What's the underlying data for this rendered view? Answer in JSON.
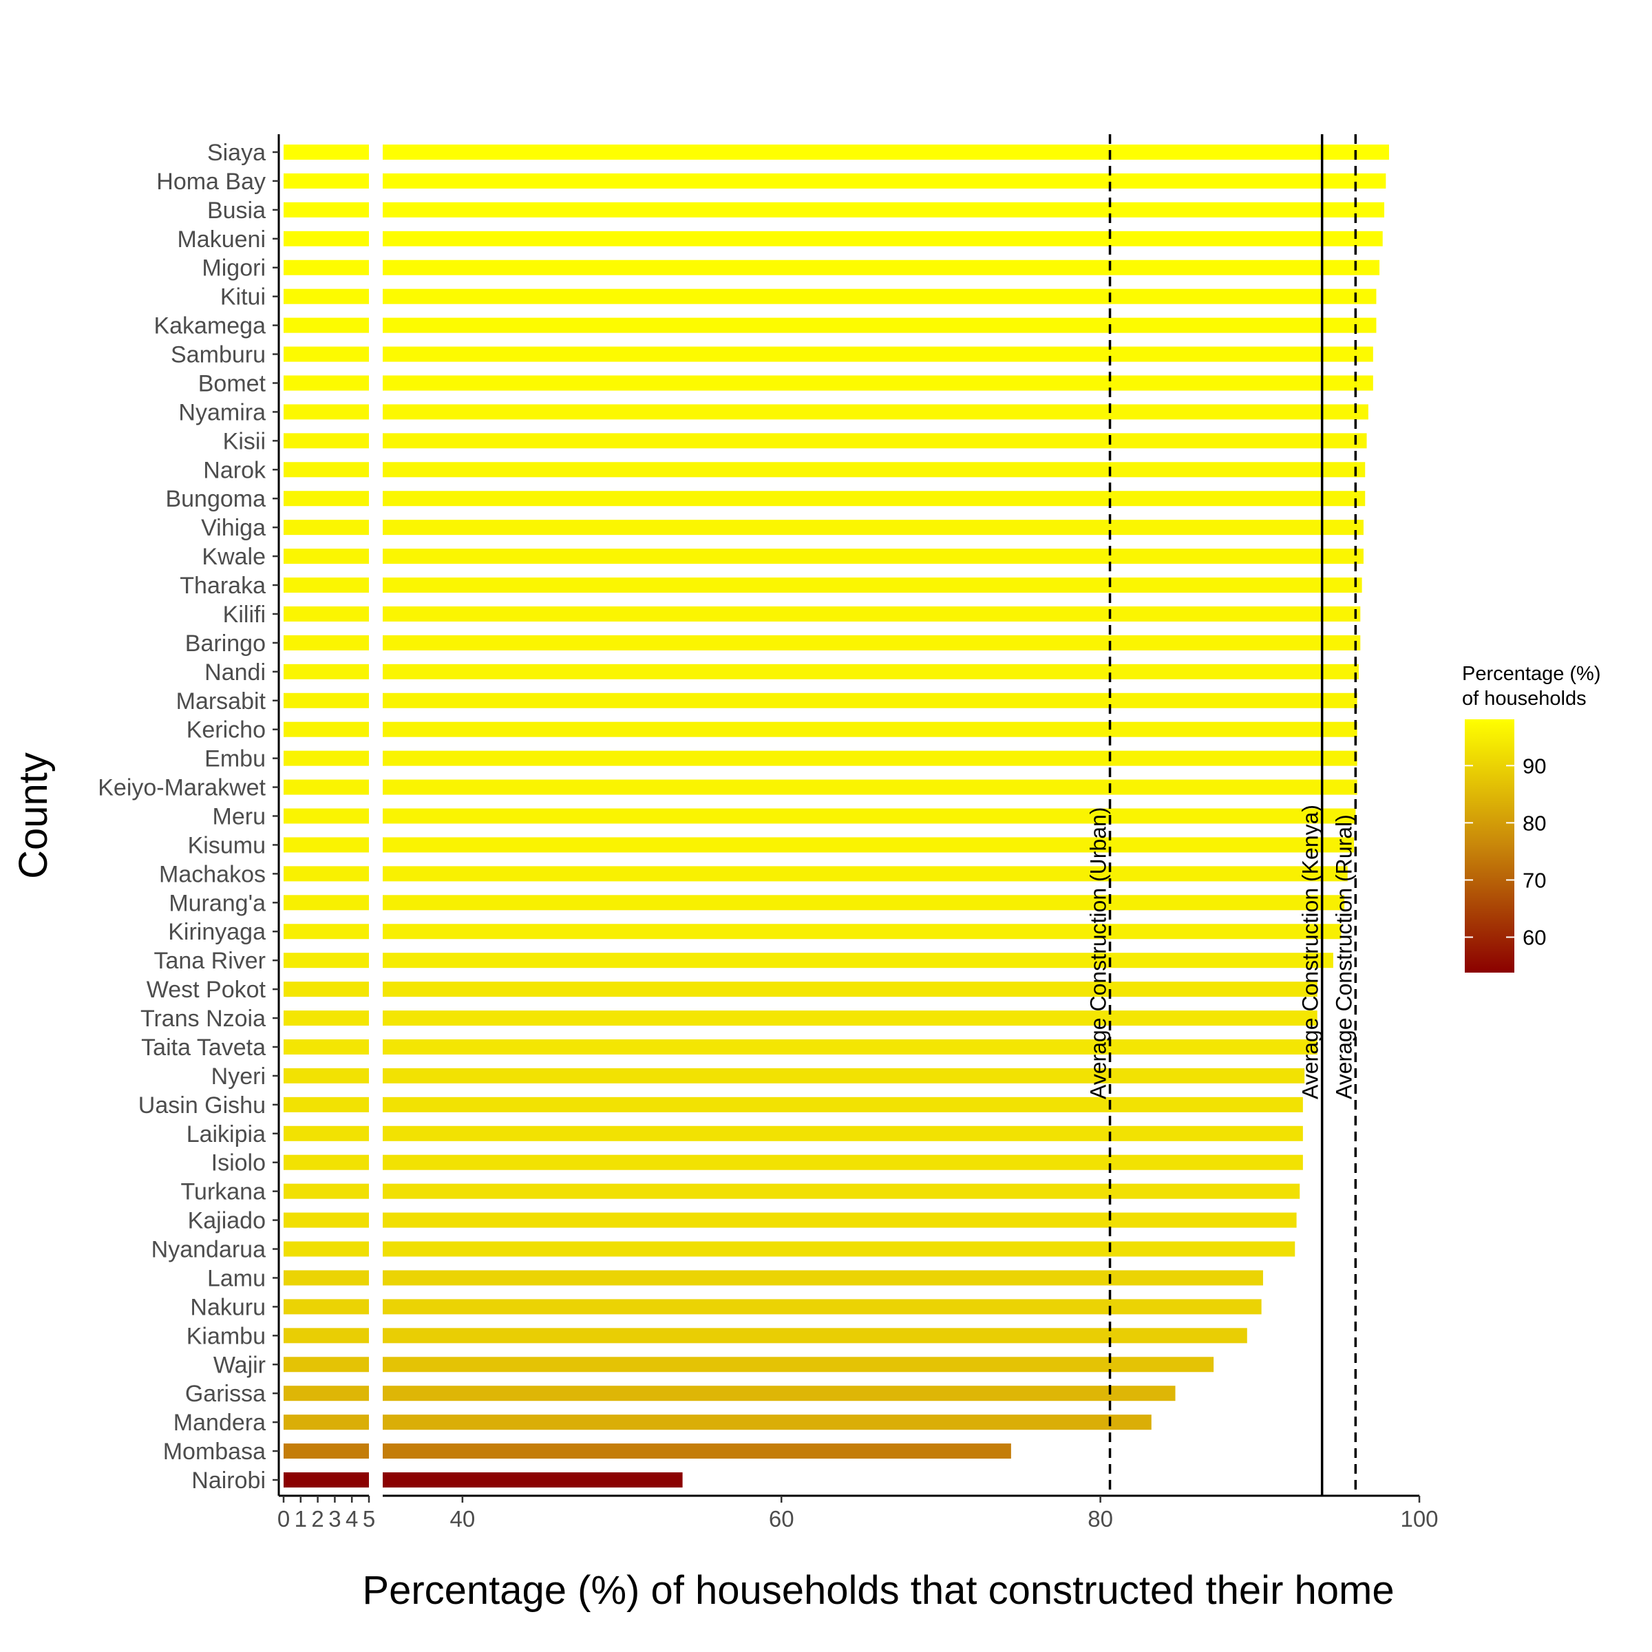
{
  "chart_data": {
    "type": "bar",
    "orientation": "horizontal",
    "xlabel": "Percentage (%) of households that constructed their home",
    "ylabel": "County",
    "axis_break": {
      "segment1_range": [
        0,
        5
      ],
      "segment2_range": [
        35,
        100
      ]
    },
    "x_ticks_segment1": [
      "0",
      "1",
      "2",
      "3",
      "4",
      "5"
    ],
    "x_ticks_segment2": [
      "40",
      "60",
      "80",
      "100"
    ],
    "categories": [
      "Siaya",
      "Homa Bay",
      "Busia",
      "Makueni",
      "Migori",
      "Kitui",
      "Kakamega",
      "Samburu",
      "Bomet",
      "Nyamira",
      "Kisii",
      "Narok",
      "Bungoma",
      "Vihiga",
      "Kwale",
      "Tharaka",
      "Kilifi",
      "Baringo",
      "Nandi",
      "Marsabit",
      "Kericho",
      "Embu",
      "Keiyo-Marakwet",
      "Meru",
      "Kisumu",
      "Machakos",
      "Murang'a",
      "Kirinyaga",
      "Tana River",
      "West Pokot",
      "Trans Nzoia",
      "Taita Taveta",
      "Nyeri",
      "Uasin Gishu",
      "Laikipia",
      "Isiolo",
      "Turkana",
      "Kajiado",
      "Nyandarua",
      "Lamu",
      "Nakuru",
      "Kiambu",
      "Wajir",
      "Garissa",
      "Mandera",
      "Mombasa",
      "Nairobi"
    ],
    "values": [
      98.1,
      97.9,
      97.8,
      97.7,
      97.5,
      97.3,
      97.3,
      97.1,
      97.1,
      96.8,
      96.7,
      96.6,
      96.6,
      96.5,
      96.5,
      96.4,
      96.3,
      96.3,
      96.2,
      96.1,
      96.1,
      96.1,
      96.1,
      96.0,
      95.9,
      95.5,
      95.3,
      95.1,
      94.6,
      93.6,
      93.6,
      93.6,
      92.8,
      92.7,
      92.7,
      92.7,
      92.5,
      92.3,
      92.2,
      90.2,
      90.1,
      89.2,
      87.1,
      84.7,
      83.2,
      74.4,
      53.8
    ],
    "reference_lines": [
      {
        "label": "Average Construction (Urban)",
        "value": 80.6,
        "style": "dashed"
      },
      {
        "label": "Average Construction (Kenya)",
        "value": 93.9,
        "style": "solid"
      },
      {
        "label": "Average Construction (Rural)",
        "value": 96.0,
        "style": "dashed"
      }
    ],
    "legend": {
      "title_line1": "Percentage (%)",
      "title_line2": "of households",
      "labels": [
        "60",
        "70",
        "80",
        "90"
      ],
      "range": [
        53.8,
        98.1
      ],
      "low_color": "#8b0000",
      "mid_color": "#c8860a",
      "high_color": "#ffff00",
      "position": "right"
    },
    "grid": false
  }
}
